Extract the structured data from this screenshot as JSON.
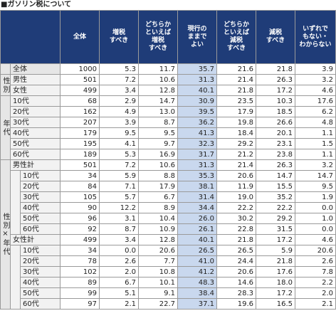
{
  "title": "■ガソリン税について",
  "table": {
    "header": [
      "全体",
      "増税\nすべき",
      "どちらか\nといえば\n増税\nすべき",
      "現行の\nままで\nよい",
      "どちらか\nといえば\n減税\nすべき",
      "減税\nすべき",
      "いずれで\nもない・\nわからない"
    ],
    "total_row": {
      "label": "全体",
      "cells": [
        "1000",
        "5.3",
        "11.7",
        "35.7",
        "21.6",
        "21.8",
        "3.9"
      ]
    },
    "groups": [
      {
        "label": "性別",
        "rows": [
          {
            "label": "男性",
            "cells": [
              "501",
              "7.2",
              "10.6",
              "31.3",
              "21.4",
              "26.3",
              "3.2"
            ]
          },
          {
            "label": "女性",
            "cells": [
              "499",
              "3.4",
              "12.8",
              "40.1",
              "21.8",
              "17.2",
              "4.6"
            ]
          }
        ]
      },
      {
        "label": "年代",
        "rows": [
          {
            "label": "10代",
            "cells": [
              "68",
              "2.9",
              "14.7",
              "30.9",
              "23.5",
              "10.3",
              "17.6"
            ]
          },
          {
            "label": "20代",
            "cells": [
              "162",
              "4.9",
              "13.0",
              "39.5",
              "17.9",
              "18.5",
              "6.2"
            ]
          },
          {
            "label": "30代",
            "cells": [
              "207",
              "3.9",
              "8.7",
              "36.2",
              "19.8",
              "26.6",
              "4.8"
            ]
          },
          {
            "label": "40代",
            "cells": [
              "179",
              "9.5",
              "9.5",
              "41.3",
              "18.4",
              "20.1",
              "1.1"
            ]
          },
          {
            "label": "50代",
            "cells": [
              "195",
              "4.1",
              "9.7",
              "32.3",
              "29.2",
              "23.1",
              "1.5"
            ]
          },
          {
            "label": "60代",
            "cells": [
              "189",
              "5.3",
              "16.9",
              "31.7",
              "21.2",
              "23.8",
              "1.1"
            ]
          }
        ]
      },
      {
        "label": "性別×年代",
        "subgroups": [
          {
            "label": "男性計",
            "cells": [
              "501",
              "7.2",
              "10.6",
              "31.3",
              "21.4",
              "26.3",
              "3.2"
            ],
            "rows": [
              {
                "label": "10代",
                "cells": [
                  "34",
                  "5.9",
                  "8.8",
                  "35.3",
                  "20.6",
                  "14.7",
                  "14.7"
                ]
              },
              {
                "label": "20代",
                "cells": [
                  "84",
                  "7.1",
                  "17.9",
                  "38.1",
                  "11.9",
                  "15.5",
                  "9.5"
                ]
              },
              {
                "label": "30代",
                "cells": [
                  "105",
                  "5.7",
                  "6.7",
                  "31.4",
                  "19.0",
                  "35.2",
                  "1.9"
                ]
              },
              {
                "label": "40代",
                "cells": [
                  "90",
                  "12.2",
                  "8.9",
                  "34.4",
                  "22.2",
                  "22.2",
                  "0.0"
                ]
              },
              {
                "label": "50代",
                "cells": [
                  "96",
                  "3.1",
                  "10.4",
                  "26.0",
                  "30.2",
                  "29.2",
                  "1.0"
                ]
              },
              {
                "label": "60代",
                "cells": [
                  "92",
                  "8.7",
                  "10.9",
                  "26.1",
                  "22.8",
                  "31.5",
                  "0.0"
                ]
              }
            ]
          },
          {
            "label": "女性計",
            "cells": [
              "499",
              "3.4",
              "12.8",
              "40.1",
              "21.8",
              "17.2",
              "4.6"
            ],
            "rows": [
              {
                "label": "10代",
                "cells": [
                  "34",
                  "0.0",
                  "20.6",
                  "26.5",
                  "26.5",
                  "5.9",
                  "20.6"
                ]
              },
              {
                "label": "20代",
                "cells": [
                  "78",
                  "2.6",
                  "7.7",
                  "41.0",
                  "24.4",
                  "21.8",
                  "2.6"
                ]
              },
              {
                "label": "30代",
                "cells": [
                  "102",
                  "2.0",
                  "10.8",
                  "41.2",
                  "20.6",
                  "17.6",
                  "7.8"
                ]
              },
              {
                "label": "40代",
                "cells": [
                  "89",
                  "6.7",
                  "10.1",
                  "48.3",
                  "14.6",
                  "18.0",
                  "2.2"
                ]
              },
              {
                "label": "50代",
                "cells": [
                  "99",
                  "5.1",
                  "9.1",
                  "38.4",
                  "28.3",
                  "17.2",
                  "2.0"
                ]
              },
              {
                "label": "60代",
                "cells": [
                  "97",
                  "2.1",
                  "22.7",
                  "37.1",
                  "19.6",
                  "16.5",
                  "2.1"
                ]
              }
            ]
          }
        ]
      }
    ]
  }
}
